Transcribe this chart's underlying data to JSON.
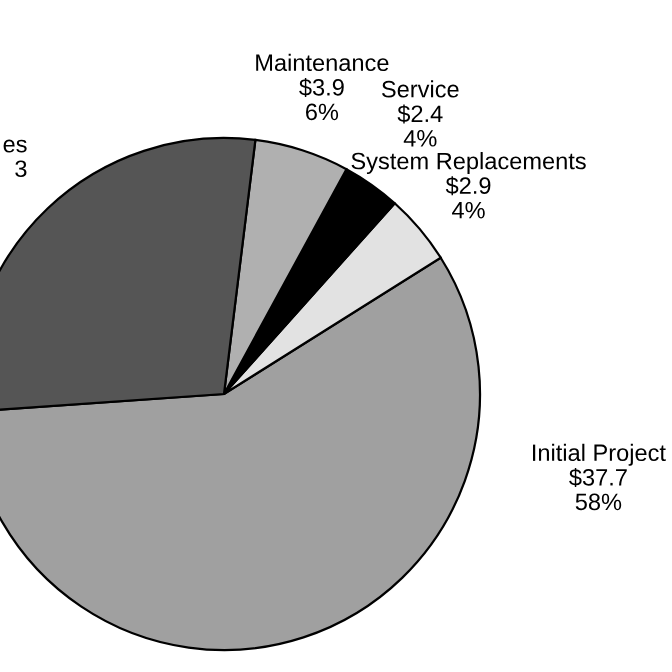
{
  "chart_data": {
    "type": "pie",
    "categories": [
      "Initial Project",
      "System Replacements",
      "Service",
      "Maintenance",
      null
    ],
    "values": [
      37.7,
      2.9,
      2.4,
      3.9,
      18.3
    ],
    "value_labels": [
      "$37.7\n58%",
      "$2.9\n4%",
      "$2.4\n4%",
      "$3.9\n6%",
      null
    ],
    "colors": [
      "#a0a0a0",
      "#e2e2e2",
      "#000000",
      "#b0b0b0",
      "#555555"
    ],
    "annotations": [
      "es\n3"
    ],
    "legend": false
  }
}
